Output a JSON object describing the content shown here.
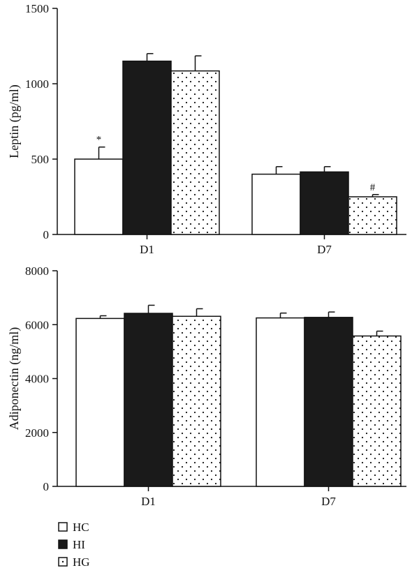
{
  "legend": {
    "items": [
      {
        "label": "HC",
        "fill": "white"
      },
      {
        "label": "HI",
        "fill": "black"
      },
      {
        "label": "HG",
        "fill": "dotted"
      }
    ]
  },
  "colors": {
    "bar_edge": "#111111",
    "dark_fill": "#1a1a1a",
    "background": "#ffffff"
  },
  "chart_data": [
    {
      "type": "bar",
      "title": "",
      "xlabel": "",
      "ylabel": "Leptin (pg/ml)",
      "ylim": [
        0,
        1500
      ],
      "yticks": [
        0,
        500,
        1000,
        1500
      ],
      "categories": [
        "D1",
        "D7"
      ],
      "series": [
        {
          "name": "HC",
          "values": [
            500,
            400
          ],
          "errors": [
            80,
            50
          ]
        },
        {
          "name": "HI",
          "values": [
            1150,
            415
          ],
          "errors": [
            50,
            35
          ]
        },
        {
          "name": "HG",
          "values": [
            1085,
            250
          ],
          "errors": [
            100,
            15
          ]
        }
      ],
      "annotations": [
        {
          "category": "D1",
          "series": "HC",
          "text": "*"
        },
        {
          "category": "D7",
          "series": "HG",
          "text": "#"
        }
      ],
      "grid": false
    },
    {
      "type": "bar",
      "title": "",
      "xlabel": "",
      "ylabel": "Adiponectin (ng/ml)",
      "ylim": [
        0,
        8000
      ],
      "yticks": [
        0,
        2000,
        4000,
        6000,
        8000
      ],
      "categories": [
        "D1",
        "D7"
      ],
      "series": [
        {
          "name": "HC",
          "values": [
            6230,
            6250
          ],
          "errors": [
            100,
            180
          ]
        },
        {
          "name": "HI",
          "values": [
            6420,
            6270
          ],
          "errors": [
            300,
            200
          ]
        },
        {
          "name": "HG",
          "values": [
            6310,
            5580
          ],
          "errors": [
            280,
            180
          ]
        }
      ],
      "annotations": [],
      "grid": false
    }
  ]
}
